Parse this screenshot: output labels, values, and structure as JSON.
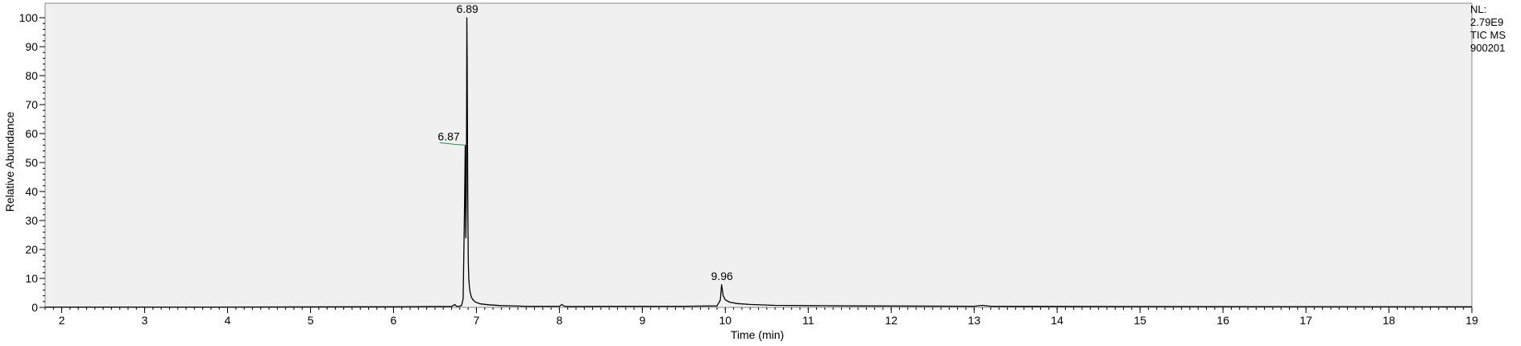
{
  "chart_data": {
    "type": "line",
    "xlabel": "Time (min)",
    "ylabel": "Relative Abundance",
    "xlim": [
      1.8,
      19.0
    ],
    "ylim": [
      0,
      100
    ],
    "x_ticks": [
      2,
      3,
      4,
      5,
      6,
      7,
      8,
      9,
      10,
      11,
      12,
      13,
      14,
      15,
      16,
      17,
      18,
      19
    ],
    "y_ticks": [
      0,
      10,
      20,
      30,
      40,
      50,
      60,
      70,
      80,
      90,
      100
    ],
    "grid": false,
    "series": [
      {
        "x": [
          1.8,
          4.0,
          5.6,
          6.0,
          6.5,
          6.7,
          6.74,
          6.76,
          6.78,
          6.82,
          6.84,
          6.855,
          6.865,
          6.872,
          6.878,
          6.884,
          6.888,
          6.892,
          6.897,
          6.902,
          6.908,
          6.915,
          6.925,
          6.94,
          6.96,
          6.99,
          7.05,
          7.15,
          7.3,
          7.6,
          8.0,
          8.03,
          8.06,
          8.1,
          8.6,
          9.0,
          9.5,
          9.9,
          9.94,
          9.955,
          9.962,
          9.975,
          10.0,
          10.05,
          10.15,
          10.3,
          10.6,
          11.5,
          13.0,
          13.1,
          13.2,
          15.0,
          19.0
        ],
        "y": [
          0.1,
          0.1,
          0.2,
          0.2,
          0.3,
          0.3,
          1.0,
          0.4,
          0.3,
          0.6,
          3.0,
          32.0,
          56.0,
          24.0,
          40.0,
          100.0,
          86.0,
          60.0,
          30.0,
          16.0,
          10.0,
          7.0,
          5.0,
          3.5,
          2.5,
          1.8,
          1.2,
          0.9,
          0.6,
          0.4,
          0.4,
          1.0,
          0.4,
          0.3,
          0.4,
          0.4,
          0.4,
          0.5,
          2.5,
          7.8,
          6.5,
          4.0,
          2.6,
          1.8,
          1.3,
          1.0,
          0.7,
          0.5,
          0.4,
          0.7,
          0.4,
          0.3,
          0.2
        ]
      }
    ],
    "peak_labels": [
      {
        "label": "6.89",
        "x": 6.89,
        "y": 100
      },
      {
        "label": "6.87",
        "x": 6.87,
        "y": 56
      },
      {
        "label": "9.96",
        "x": 9.96,
        "y": 7.8
      }
    ],
    "info": [
      "NL:",
      "2.79E9",
      "TIC  MS",
      "900201"
    ],
    "colors": {
      "plot_bg": "#f0f0f0",
      "trace": "#000000",
      "annotation_line": "#2e8b57"
    }
  }
}
